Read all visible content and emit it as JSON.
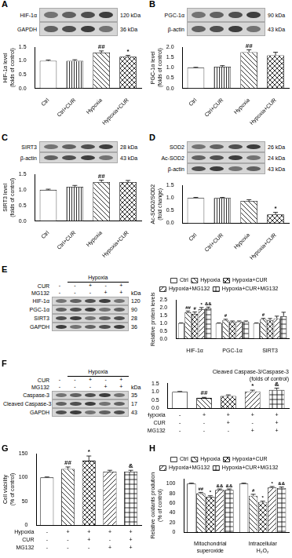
{
  "chart_data": [
    {
      "panel": "A",
      "type": "bar",
      "blot": {
        "rows": [
          {
            "name": "HIF-1α",
            "size": "120 kDa"
          },
          {
            "name": "GAPDH",
            "size": "36 kDa"
          }
        ]
      },
      "categories": [
        "Ctrl",
        "Ctrl+CUR",
        "Hypoxia",
        "Hypoxia+CUR"
      ],
      "values": [
        1.0,
        1.0,
        1.3,
        1.15
      ],
      "errors": [
        0.03,
        0.04,
        0.06,
        0.05
      ],
      "annotations": [
        null,
        null,
        "##",
        "*"
      ],
      "y_label": [
        "HIF-1α level",
        "(folds of control)"
      ],
      "ylim": [
        0,
        1.5
      ],
      "yticks": [
        {
          "value": 0,
          "label": "0.0"
        },
        0.5,
        {
          "value": 1,
          "label": "1.0"
        },
        1.5
      ],
      "color": "#000000",
      "grid": false
    },
    {
      "panel": "B",
      "type": "bar",
      "blot": {
        "rows": [
          {
            "name": "PGC-1α",
            "size": "90 kDa"
          },
          {
            "name": "β-actin",
            "size": "43 kDa"
          }
        ]
      },
      "categories": [
        "Ctrl",
        "Ctrl+CUR",
        "Hypoxia",
        "Hypoxia+CUR"
      ],
      "values": [
        1.0,
        1.05,
        1.75,
        1.6
      ],
      "errors": [
        0.02,
        0.05,
        0.12,
        0.15
      ],
      "annotations": [
        null,
        null,
        "##",
        null
      ],
      "y_label": [
        "PGC-1α level",
        "(folds of control)"
      ],
      "ylim": [
        0,
        2
      ],
      "yticks": [
        {
          "value": 0,
          "label": "0.0"
        },
        0.5,
        {
          "value": 1,
          "label": "1.0"
        },
        1.5,
        {
          "value": 2,
          "label": "2.0"
        }
      ],
      "color": "#000000",
      "grid": false
    },
    {
      "panel": "C",
      "type": "bar",
      "blot": {
        "rows": [
          {
            "name": "SIRT3",
            "size": "28 kDa"
          },
          {
            "name": "β-actin",
            "size": "43 kDa"
          }
        ]
      },
      "categories": [
        "Ctrl",
        "Ctrl+CUR",
        "Hypoxia",
        "Hypoxia+CUR"
      ],
      "values": [
        1.0,
        1.1,
        1.25,
        1.25
      ],
      "errors": [
        0.02,
        0.04,
        0.06,
        0.05
      ],
      "annotations": [
        null,
        null,
        "##",
        null
      ],
      "y_label": [
        "SIRT3 level",
        "(folds of control)"
      ],
      "ylim": [
        0,
        1.5
      ],
      "yticks": [
        {
          "value": 0,
          "label": "0.0"
        },
        0.5,
        {
          "value": 1,
          "label": "1.0"
        },
        1.5
      ],
      "color": "#000000",
      "grid": false
    },
    {
      "panel": "D",
      "type": "bar",
      "blot": {
        "rows": [
          {
            "name": "SOD2",
            "size": "26 kDa"
          },
          {
            "name": "Ac-SOD2",
            "size": "24 kDa"
          },
          {
            "name": "β-actin",
            "size": "43 kDa"
          }
        ]
      },
      "categories": [
        "Ctrl",
        "Ctrl+CUR",
        "Hypoxia",
        "Hypoxia+CUR"
      ],
      "values": [
        1.0,
        1.0,
        0.88,
        0.35
      ],
      "errors": [
        0.02,
        0.02,
        0.05,
        0.08
      ],
      "annotations": [
        null,
        null,
        null,
        "*"
      ],
      "y_label": [
        "Ac-SOD2/SOD2",
        "(fold change)"
      ],
      "ylim": [
        0,
        1.5
      ],
      "yticks": [
        {
          "value": 0,
          "label": "0.0"
        },
        0.5,
        {
          "value": 1,
          "label": "1.0"
        },
        1.5
      ],
      "color": "#000000",
      "grid": false
    },
    {
      "panel": "E",
      "type": "bar",
      "blot": {
        "header": "Hypoxia",
        "conditions": [
          {
            "name": "CUR",
            "signs": [
              "-",
              "-",
              "+",
              "-",
              "+"
            ]
          },
          {
            "name": "MG132",
            "signs": [
              "-",
              "-",
              "-",
              "+",
              "+"
            ]
          }
        ],
        "size_header": "kDa",
        "rows": [
          {
            "name": "HIF-1α",
            "size": "120"
          },
          {
            "name": "PGC-1α",
            "size": "90"
          },
          {
            "name": "SIRT3",
            "size": "28"
          },
          {
            "name": "GAPDH",
            "size": "36"
          }
        ]
      },
      "categories": [
        "HIF-1α",
        "PGC-1α",
        "SIRT3"
      ],
      "series": [
        {
          "name": "Ctrl",
          "values": [
            1.0,
            1.0,
            1.0
          ],
          "errors": [
            0.02,
            0.02,
            0.02
          ],
          "annotations": [
            null,
            null,
            null
          ]
        },
        {
          "name": "Hypoxia",
          "values": [
            1.7,
            1.2,
            1.25
          ],
          "errors": [
            0.08,
            0.05,
            0.06
          ],
          "annotations": [
            "##",
            "#",
            "#"
          ]
        },
        {
          "name": "Hypoxia+CUR",
          "values": [
            1.6,
            1.1,
            1.2
          ],
          "errors": [
            0.12,
            0.04,
            0.1
          ],
          "annotations": [
            "#",
            null,
            null
          ]
        },
        {
          "name": "Hypoxia+MG132",
          "values": [
            1.9,
            1.1,
            1.3
          ],
          "errors": [
            0.1,
            0.04,
            0.15
          ],
          "annotations": [
            "*",
            null,
            null
          ]
        },
        {
          "name": "Hypoxia+CUR+MG132",
          "values": [
            1.95,
            1.1,
            1.45
          ],
          "errors": [
            0.08,
            0.04,
            0.25
          ],
          "annotations": [
            "&&",
            null,
            null
          ]
        }
      ],
      "y_label": [
        "Relative protein levels"
      ],
      "ylim": [
        0,
        2.5
      ],
      "yticks": [
        {
          "value": 0,
          "label": "0.0"
        },
        0.5,
        {
          "value": 1,
          "label": "1.0"
        },
        1.5,
        {
          "value": 2,
          "label": "2.0"
        },
        2.5
      ],
      "legend": "top",
      "color": "#000000",
      "grid": false
    },
    {
      "panel": "F",
      "type": "bar",
      "blot": {
        "header": "Hypoxia",
        "conditions": [
          {
            "name": "CUR",
            "signs": [
              "-",
              "-",
              "+",
              "-",
              "+"
            ]
          },
          {
            "name": "MG132",
            "signs": [
              "-",
              "-",
              "-",
              "+",
              "+"
            ]
          }
        ],
        "size_header": "kDa",
        "rows": [
          {
            "name": "Caspase-3",
            "size": "35"
          },
          {
            "name": "Cleaved Caspase-3",
            "size": "17"
          },
          {
            "name": "GAPDH",
            "size": "43"
          }
        ]
      },
      "categories": [
        null,
        null,
        null,
        null,
        null
      ],
      "conditions": [
        {
          "name": "Hypoxia",
          "signs": [
            "-",
            "+",
            "+",
            "+",
            "+"
          ]
        },
        {
          "name": "CUR",
          "signs": [
            "-",
            "-",
            "+",
            "-",
            "+"
          ]
        },
        {
          "name": "MG132",
          "signs": [
            "-",
            "-",
            "-",
            "+",
            "+"
          ]
        }
      ],
      "values": [
        1.0,
        0.62,
        0.75,
        1.02,
        1.12
      ],
      "errors": [
        0.02,
        0.04,
        0.06,
        0.08,
        0.1
      ],
      "annotations": [
        null,
        "##",
        null,
        "*",
        "&"
      ],
      "title": [
        "Cleaved Caspase-3/Caspase-3",
        "(folds of control)"
      ],
      "ylim": [
        0,
        1.5
      ],
      "yticks": [
        {
          "value": 0,
          "label": "0.0"
        },
        0.5,
        {
          "value": 1,
          "label": "1.0"
        },
        1.5
      ],
      "color": "#000000",
      "grid": false
    },
    {
      "panel": "G",
      "type": "bar",
      "categories": [
        null,
        null,
        null,
        null,
        null
      ],
      "conditions": [
        {
          "name": "Hypoxia",
          "signs": [
            "-",
            "+",
            "+",
            "+",
            "+"
          ]
        },
        {
          "name": "CUR",
          "signs": [
            "-",
            "-",
            "+",
            "-",
            "+"
          ]
        },
        {
          "name": "MG132",
          "signs": [
            "-",
            "-",
            "-",
            "+",
            "+"
          ]
        }
      ],
      "values": [
        100,
        118,
        135,
        112,
        112
      ],
      "errors": [
        1,
        4,
        10,
        3,
        3
      ],
      "annotations": [
        null,
        "##",
        "*",
        null,
        "&"
      ],
      "y_label": [
        "Cell viability",
        "(% of control)"
      ],
      "ylim": [
        0,
        150
      ],
      "yticks": [
        0,
        50,
        100,
        150
      ],
      "color": "#000000",
      "grid": false
    },
    {
      "panel": "H",
      "type": "bar",
      "categories": [
        "Mitochondrial superoxide",
        "Intracellular H₂O₂"
      ],
      "series": [
        {
          "name": "Ctrl",
          "values": [
            100,
            100
          ],
          "errors": [
            1,
            1
          ],
          "annotations": [
            null,
            null
          ]
        },
        {
          "name": "Hypoxia",
          "values": [
            80,
            75
          ],
          "errors": [
            2,
            3
          ],
          "annotations": [
            "##",
            "#"
          ]
        },
        {
          "name": "Hypoxia+CUR",
          "values": [
            73,
            62
          ],
          "errors": [
            2,
            2
          ],
          "annotations": [
            "*",
            "*"
          ]
        },
        {
          "name": "Hypoxia+MG132",
          "values": [
            87,
            92
          ],
          "errors": [
            2,
            2
          ],
          "annotations": [
            "&&",
            "*"
          ]
        },
        {
          "name": "Hypoxia+CUR+MG132",
          "values": [
            87,
            91
          ],
          "errors": [
            2,
            2
          ],
          "annotations": [
            "&&",
            "&&"
          ]
        }
      ],
      "y_label": [
        "Relative oxidants prodution",
        "(% of control)"
      ],
      "ylim": [
        0,
        110
      ],
      "yticks": [
        0,
        20,
        40,
        60,
        80,
        100
      ],
      "legend": "top",
      "color": "#000000",
      "grid": false
    }
  ]
}
